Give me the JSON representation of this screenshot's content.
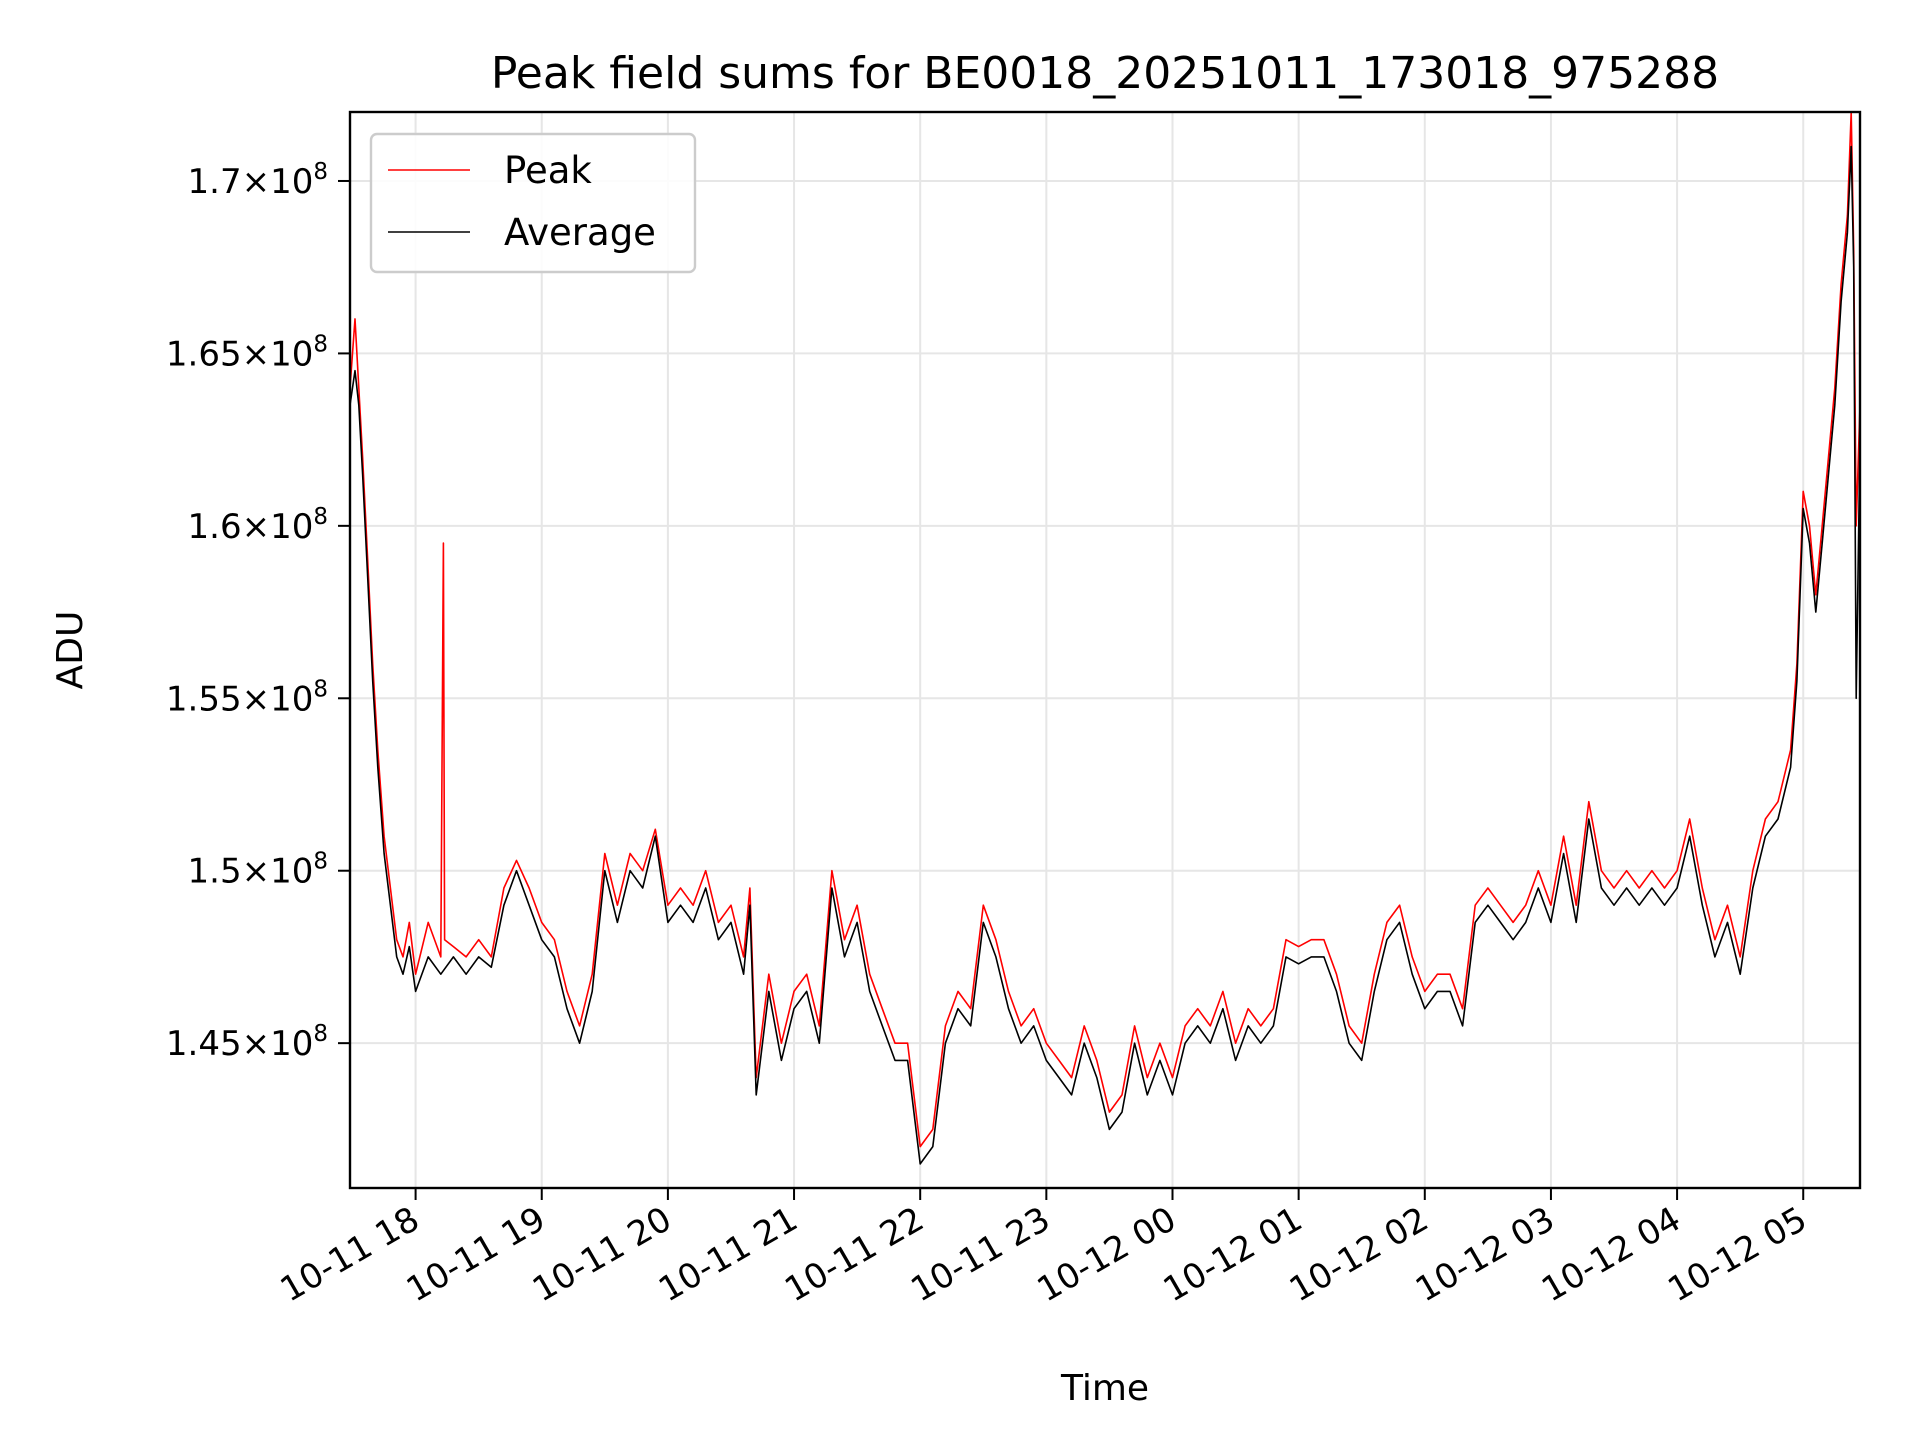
{
  "chart_data": {
    "type": "line",
    "title": "Peak field sums for BE0018_20251011_173018_975288",
    "xlabel": "Time",
    "ylabel": "ADU",
    "x_range_hours": [
      17.48,
      29.45
    ],
    "ylim": [
      140800000.0,
      172000000.0
    ],
    "grid": true,
    "legend_position": "upper-left",
    "x_ticks": [
      {
        "hour": 18,
        "label": "10-11 18"
      },
      {
        "hour": 19,
        "label": "10-11 19"
      },
      {
        "hour": 20,
        "label": "10-11 20"
      },
      {
        "hour": 21,
        "label": "10-11 21"
      },
      {
        "hour": 22,
        "label": "10-11 22"
      },
      {
        "hour": 23,
        "label": "10-11 23"
      },
      {
        "hour": 24,
        "label": "10-12 00"
      },
      {
        "hour": 25,
        "label": "10-12 01"
      },
      {
        "hour": 26,
        "label": "10-12 02"
      },
      {
        "hour": 27,
        "label": "10-12 03"
      },
      {
        "hour": 28,
        "label": "10-12 04"
      },
      {
        "hour": 29,
        "label": "10-12 05"
      }
    ],
    "y_ticks": [
      {
        "value": 145000000.0,
        "mantissa": "1.45",
        "exponent": "8"
      },
      {
        "value": 150000000.0,
        "mantissa": "1.5",
        "exponent": "8"
      },
      {
        "value": 155000000.0,
        "mantissa": "1.55",
        "exponent": "8"
      },
      {
        "value": 160000000.0,
        "mantissa": "1.6",
        "exponent": "8"
      },
      {
        "value": 165000000.0,
        "mantissa": "1.65",
        "exponent": "8"
      },
      {
        "value": 170000000.0,
        "mantissa": "1.7",
        "exponent": "8"
      }
    ],
    "series": [
      {
        "name": "Peak",
        "color": "#ff0000",
        "x": [
          17.48,
          17.52,
          17.55,
          17.58,
          17.62,
          17.66,
          17.7,
          17.75,
          17.8,
          17.85,
          17.9,
          17.95,
          18.0,
          18.1,
          18.2,
          18.22,
          18.23,
          18.3,
          18.4,
          18.5,
          18.6,
          18.7,
          18.8,
          18.9,
          19.0,
          19.1,
          19.2,
          19.3,
          19.4,
          19.5,
          19.6,
          19.7,
          19.8,
          19.9,
          20.0,
          20.1,
          20.2,
          20.3,
          20.4,
          20.5,
          20.6,
          20.65,
          20.7,
          20.8,
          20.9,
          21.0,
          21.1,
          21.2,
          21.3,
          21.4,
          21.5,
          21.6,
          21.7,
          21.8,
          21.9,
          22.0,
          22.1,
          22.2,
          22.3,
          22.4,
          22.5,
          22.6,
          22.7,
          22.8,
          22.9,
          23.0,
          23.1,
          23.2,
          23.3,
          23.4,
          23.5,
          23.6,
          23.7,
          23.8,
          23.9,
          24.0,
          24.1,
          24.2,
          24.3,
          24.4,
          24.5,
          24.6,
          24.7,
          24.8,
          24.9,
          25.0,
          25.1,
          25.2,
          25.3,
          25.4,
          25.5,
          25.6,
          25.7,
          25.8,
          25.9,
          26.0,
          26.1,
          26.2,
          26.3,
          26.4,
          26.5,
          26.6,
          26.7,
          26.8,
          26.9,
          27.0,
          27.1,
          27.2,
          27.3,
          27.4,
          27.5,
          27.6,
          27.7,
          27.8,
          27.9,
          28.0,
          28.1,
          28.2,
          28.3,
          28.4,
          28.5,
          28.6,
          28.7,
          28.8,
          28.9,
          28.95,
          29.0,
          29.05,
          29.1,
          29.15,
          29.2,
          29.25,
          29.3,
          29.35,
          29.38,
          29.4,
          29.42,
          29.45
        ],
        "values": [
          164000000.0,
          166000000.0,
          164000000.0,
          162000000.0,
          159000000.0,
          156000000.0,
          153500000.0,
          151000000.0,
          149500000.0,
          148000000.0,
          147500000.0,
          148500000.0,
          147000000.0,
          148500000.0,
          147500000.0,
          159500000.0,
          148000000.0,
          147800000.0,
          147500000.0,
          148000000.0,
          147500000.0,
          149500000.0,
          150300000.0,
          149500000.0,
          148500000.0,
          148000000.0,
          146500000.0,
          145500000.0,
          147000000.0,
          150500000.0,
          149000000.0,
          150500000.0,
          150000000.0,
          151200000.0,
          149000000.0,
          149500000.0,
          149000000.0,
          150000000.0,
          148500000.0,
          149000000.0,
          147500000.0,
          149500000.0,
          144000000.0,
          147000000.0,
          145000000.0,
          146500000.0,
          147000000.0,
          145500000.0,
          150000000.0,
          148000000.0,
          149000000.0,
          147000000.0,
          146000000.0,
          145000000.0,
          145000000.0,
          142000000.0,
          142500000.0,
          145500000.0,
          146500000.0,
          146000000.0,
          149000000.0,
          148000000.0,
          146500000.0,
          145500000.0,
          146000000.0,
          145000000.0,
          144500000.0,
          144000000.0,
          145500000.0,
          144500000.0,
          143000000.0,
          143500000.0,
          145500000.0,
          144000000.0,
          145000000.0,
          144000000.0,
          145500000.0,
          146000000.0,
          145500000.0,
          146500000.0,
          145000000.0,
          146000000.0,
          145500000.0,
          146000000.0,
          148000000.0,
          147800000.0,
          148000000.0,
          148000000.0,
          147000000.0,
          145500000.0,
          145000000.0,
          147000000.0,
          148500000.0,
          149000000.0,
          147500000.0,
          146500000.0,
          147000000.0,
          147000000.0,
          146000000.0,
          149000000.0,
          149500000.0,
          149000000.0,
          148500000.0,
          149000000.0,
          150000000.0,
          149000000.0,
          151000000.0,
          149000000.0,
          152000000.0,
          150000000.0,
          149500000.0,
          150000000.0,
          149500000.0,
          150000000.0,
          149500000.0,
          150000000.0,
          151500000.0,
          149500000.0,
          148000000.0,
          149000000.0,
          147500000.0,
          150000000.0,
          151500000.0,
          152000000.0,
          153500000.0,
          156000000.0,
          161000000.0,
          160000000.0,
          158000000.0,
          160000000.0,
          162000000.0,
          164000000.0,
          167000000.0,
          169000000.0,
          172000000.0,
          168000000.0,
          160000000.0,
          163500000.0
        ]
      },
      {
        "name": "Average",
        "color": "#000000",
        "x": [
          17.48,
          17.52,
          17.55,
          17.58,
          17.62,
          17.66,
          17.7,
          17.75,
          17.8,
          17.85,
          17.9,
          17.95,
          18.0,
          18.1,
          18.2,
          18.3,
          18.4,
          18.5,
          18.6,
          18.7,
          18.8,
          18.9,
          19.0,
          19.1,
          19.2,
          19.3,
          19.4,
          19.5,
          19.6,
          19.7,
          19.8,
          19.9,
          20.0,
          20.1,
          20.2,
          20.3,
          20.4,
          20.5,
          20.6,
          20.65,
          20.7,
          20.8,
          20.9,
          21.0,
          21.1,
          21.2,
          21.3,
          21.4,
          21.5,
          21.6,
          21.7,
          21.8,
          21.9,
          22.0,
          22.1,
          22.2,
          22.3,
          22.4,
          22.5,
          22.6,
          22.7,
          22.8,
          22.9,
          23.0,
          23.1,
          23.2,
          23.3,
          23.4,
          23.5,
          23.6,
          23.7,
          23.8,
          23.9,
          24.0,
          24.1,
          24.2,
          24.3,
          24.4,
          24.5,
          24.6,
          24.7,
          24.8,
          24.9,
          25.0,
          25.1,
          25.2,
          25.3,
          25.4,
          25.5,
          25.6,
          25.7,
          25.8,
          25.9,
          26.0,
          26.1,
          26.2,
          26.3,
          26.4,
          26.5,
          26.6,
          26.7,
          26.8,
          26.9,
          27.0,
          27.1,
          27.2,
          27.3,
          27.4,
          27.5,
          27.6,
          27.7,
          27.8,
          27.9,
          28.0,
          28.1,
          28.2,
          28.3,
          28.4,
          28.5,
          28.6,
          28.7,
          28.8,
          28.9,
          28.95,
          29.0,
          29.05,
          29.1,
          29.15,
          29.2,
          29.25,
          29.3,
          29.35,
          29.38,
          29.4,
          29.42,
          29.45
        ],
        "values": [
          163500000.0,
          164500000.0,
          163500000.0,
          161500000.0,
          158500000.0,
          155500000.0,
          153000000.0,
          150500000.0,
          149000000.0,
          147500000.0,
          147000000.0,
          147800000.0,
          146500000.0,
          147500000.0,
          147000000.0,
          147500000.0,
          147000000.0,
          147500000.0,
          147200000.0,
          149000000.0,
          150000000.0,
          149000000.0,
          148000000.0,
          147500000.0,
          146000000.0,
          145000000.0,
          146500000.0,
          150000000.0,
          148500000.0,
          150000000.0,
          149500000.0,
          151000000.0,
          148500000.0,
          149000000.0,
          148500000.0,
          149500000.0,
          148000000.0,
          148500000.0,
          147000000.0,
          149000000.0,
          143500000.0,
          146500000.0,
          144500000.0,
          146000000.0,
          146500000.0,
          145000000.0,
          149500000.0,
          147500000.0,
          148500000.0,
          146500000.0,
          145500000.0,
          144500000.0,
          144500000.0,
          141500000.0,
          142000000.0,
          145000000.0,
          146000000.0,
          145500000.0,
          148500000.0,
          147500000.0,
          146000000.0,
          145000000.0,
          145500000.0,
          144500000.0,
          144000000.0,
          143500000.0,
          145000000.0,
          144000000.0,
          142500000.0,
          143000000.0,
          145000000.0,
          143500000.0,
          144500000.0,
          143500000.0,
          145000000.0,
          145500000.0,
          145000000.0,
          146000000.0,
          144500000.0,
          145500000.0,
          145000000.0,
          145500000.0,
          147500000.0,
          147300000.0,
          147500000.0,
          147500000.0,
          146500000.0,
          145000000.0,
          144500000.0,
          146500000.0,
          148000000.0,
          148500000.0,
          147000000.0,
          146000000.0,
          146500000.0,
          146500000.0,
          145500000.0,
          148500000.0,
          149000000.0,
          148500000.0,
          148000000.0,
          148500000.0,
          149500000.0,
          148500000.0,
          150500000.0,
          148500000.0,
          151500000.0,
          149500000.0,
          149000000.0,
          149500000.0,
          149000000.0,
          149500000.0,
          149000000.0,
          149500000.0,
          151000000.0,
          149000000.0,
          147500000.0,
          148500000.0,
          147000000.0,
          149500000.0,
          151000000.0,
          151500000.0,
          153000000.0,
          155500000.0,
          160500000.0,
          159500000.0,
          157500000.0,
          159500000.0,
          161500000.0,
          163500000.0,
          166500000.0,
          168500000.0,
          171000000.0,
          167500000.0,
          155000000.0,
          162500000.0
        ]
      }
    ]
  }
}
